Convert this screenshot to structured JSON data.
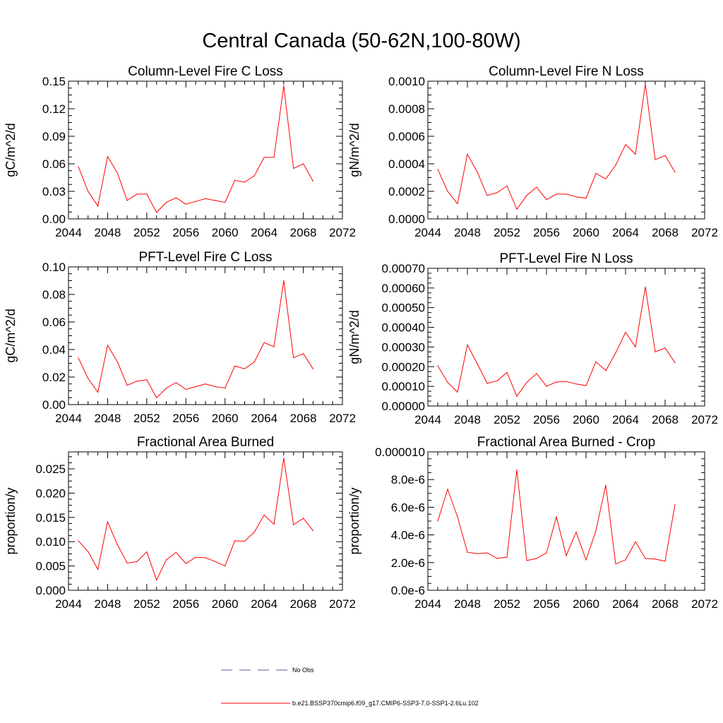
{
  "figure_title": "Central Canada (50-62N,100-80W)",
  "legend": {
    "items": [
      {
        "label": "No Obs",
        "color": "#5a5aa8",
        "style": "dashed"
      },
      {
        "label": "b.e21.BSSP370cmip6.f09_g17.CMIP6-SSP3-7.0-SSP1-2.6Lu.102",
        "color": "#ff0000",
        "style": "solid"
      }
    ]
  },
  "chart_data": [
    {
      "type": "line",
      "title": "Column-Level Fire C Loss",
      "xlabel": "",
      "ylabel": "gC/m^2/d",
      "xlim": [
        2044,
        2072
      ],
      "ylim": [
        0,
        0.15
      ],
      "x_ticks": [
        "2044",
        "2048",
        "2052",
        "2056",
        "2060",
        "2064",
        "2068",
        "2072"
      ],
      "y_ticks": [
        "0.00",
        "0.03",
        "0.06",
        "0.09",
        "0.12",
        "0.15"
      ],
      "series": [
        {
          "color": "#ff0000",
          "x": [
            2045,
            2046,
            2047,
            2048,
            2049,
            2050,
            2051,
            2052,
            2053,
            2054,
            2055,
            2056,
            2057,
            2058,
            2059,
            2060,
            2061,
            2062,
            2063,
            2064,
            2065,
            2066,
            2067,
            2068,
            2069
          ],
          "y": [
            0.057,
            0.03,
            0.014,
            0.068,
            0.05,
            0.02,
            0.027,
            0.027,
            0.007,
            0.018,
            0.023,
            0.016,
            0.019,
            0.022,
            0.02,
            0.018,
            0.042,
            0.04,
            0.047,
            0.067,
            0.067,
            0.145,
            0.055,
            0.06,
            0.041
          ]
        }
      ]
    },
    {
      "type": "line",
      "title": "Column-Level Fire N Loss",
      "xlabel": "",
      "ylabel": "gN/m^2/d",
      "xlim": [
        2044,
        2072
      ],
      "ylim": [
        0,
        0.001
      ],
      "x_ticks": [
        "2044",
        "2048",
        "2052",
        "2056",
        "2060",
        "2064",
        "2068",
        "2072"
      ],
      "y_ticks": [
        "0.0000",
        "0.0002",
        "0.0004",
        "0.0006",
        "0.0008",
        "0.0010"
      ],
      "series": [
        {
          "color": "#ff0000",
          "x": [
            2045,
            2046,
            2047,
            2048,
            2049,
            2050,
            2051,
            2052,
            2053,
            2054,
            2055,
            2056,
            2057,
            2058,
            2059,
            2060,
            2061,
            2062,
            2063,
            2064,
            2065,
            2066,
            2067,
            2068,
            2069
          ],
          "y": [
            0.00036,
            0.0002,
            0.00011,
            0.00047,
            0.00034,
            0.00017,
            0.00019,
            0.00024,
            7e-05,
            0.00017,
            0.00023,
            0.00014,
            0.00018,
            0.00018,
            0.00016,
            0.00015,
            0.00033,
            0.00029,
            0.00039,
            0.00054,
            0.00047,
            0.00098,
            0.00043,
            0.00046,
            0.00034
          ]
        }
      ]
    },
    {
      "type": "line",
      "title": "PFT-Level Fire C Loss",
      "xlabel": "",
      "ylabel": "gC/m^2/d",
      "xlim": [
        2044,
        2072
      ],
      "ylim": [
        0,
        0.1
      ],
      "x_ticks": [
        "2044",
        "2048",
        "2052",
        "2056",
        "2060",
        "2064",
        "2068",
        "2072"
      ],
      "y_ticks": [
        "0.00",
        "0.02",
        "0.04",
        "0.06",
        "0.08",
        "0.10"
      ],
      "series": [
        {
          "color": "#ff0000",
          "x": [
            2045,
            2046,
            2047,
            2048,
            2049,
            2050,
            2051,
            2052,
            2053,
            2054,
            2055,
            2056,
            2057,
            2058,
            2059,
            2060,
            2061,
            2062,
            2063,
            2064,
            2065,
            2066,
            2067,
            2068,
            2069
          ],
          "y": [
            0.034,
            0.019,
            0.009,
            0.043,
            0.031,
            0.014,
            0.017,
            0.018,
            0.005,
            0.012,
            0.016,
            0.011,
            0.013,
            0.015,
            0.013,
            0.012,
            0.028,
            0.026,
            0.031,
            0.045,
            0.042,
            0.09,
            0.034,
            0.037,
            0.026
          ]
        }
      ]
    },
    {
      "type": "line",
      "title": "PFT-Level Fire N Loss",
      "xlabel": "",
      "ylabel": "gN/m^2/d",
      "xlim": [
        2044,
        2072
      ],
      "ylim": [
        0,
        0.0007
      ],
      "x_ticks": [
        "2044",
        "2048",
        "2052",
        "2056",
        "2060",
        "2064",
        "2068",
        "2072"
      ],
      "y_ticks": [
        "0.00000",
        "0.00010",
        "0.00020",
        "0.00030",
        "0.00040",
        "0.00050",
        "0.00060",
        "0.00070"
      ],
      "series": [
        {
          "color": "#ff0000",
          "x": [
            2045,
            2046,
            2047,
            2048,
            2049,
            2050,
            2051,
            2052,
            2053,
            2054,
            2055,
            2056,
            2057,
            2058,
            2059,
            2060,
            2061,
            2062,
            2063,
            2064,
            2065,
            2066,
            2067,
            2068,
            2069
          ],
          "y": [
            0.000205,
            0.00012,
            7e-05,
            0.00031,
            0.000215,
            0.000115,
            0.000128,
            0.00017,
            5e-05,
            0.00012,
            0.000165,
            0.0001,
            0.000122,
            0.000125,
            0.000112,
            0.000103,
            0.000225,
            0.00018,
            0.00027,
            0.000375,
            0.0003,
            0.000605,
            0.000275,
            0.000295,
            0.00022
          ]
        }
      ]
    },
    {
      "type": "line",
      "title": "Fractional Area Burned",
      "xlabel": "",
      "ylabel": "proportion/y",
      "xlim": [
        2044,
        2072
      ],
      "ylim": [
        0,
        0.0285
      ],
      "x_ticks": [
        "2044",
        "2048",
        "2052",
        "2056",
        "2060",
        "2064",
        "2068",
        "2072"
      ],
      "y_ticks": [
        "0.000",
        "0.005",
        "0.010",
        "0.015",
        "0.020",
        "0.025"
      ],
      "series": [
        {
          "color": "#ff0000",
          "x": [
            2045,
            2046,
            2047,
            2048,
            2049,
            2050,
            2051,
            2052,
            2053,
            2054,
            2055,
            2056,
            2057,
            2058,
            2059,
            2060,
            2061,
            2062,
            2063,
            2064,
            2065,
            2066,
            2067,
            2068,
            2069
          ],
          "y": [
            0.0102,
            0.008,
            0.0043,
            0.0141,
            0.0094,
            0.0056,
            0.0059,
            0.0079,
            0.0021,
            0.0063,
            0.0078,
            0.0055,
            0.0068,
            0.0067,
            0.0059,
            0.005,
            0.0102,
            0.0101,
            0.012,
            0.0155,
            0.0136,
            0.0272,
            0.0135,
            0.0148,
            0.0123
          ]
        }
      ]
    },
    {
      "type": "line",
      "title": "Fractional Area Burned - Crop",
      "xlabel": "",
      "ylabel": "proportion/y",
      "xlim": [
        2044,
        2072
      ],
      "ylim": [
        0,
        1e-05
      ],
      "x_ticks": [
        "2044",
        "2048",
        "2052",
        "2056",
        "2060",
        "2064",
        "2068",
        "2072"
      ],
      "y_ticks": [
        "0.0e-6",
        "2.0e-6",
        "4.0e-6",
        "6.0e-6",
        "8.0e-6",
        "0.000010"
      ],
      "series": [
        {
          "color": "#ff0000",
          "x": [
            2045,
            2046,
            2047,
            2048,
            2049,
            2050,
            2051,
            2052,
            2053,
            2054,
            2055,
            2056,
            2057,
            2058,
            2059,
            2060,
            2061,
            2062,
            2063,
            2064,
            2065,
            2066,
            2067,
            2068,
            2069
          ],
          "y": [
            5e-06,
            7.3e-06,
            5.3e-06,
            2.75e-06,
            2.65e-06,
            2.7e-06,
            2.3e-06,
            2.4e-06,
            8.7e-06,
            2.15e-06,
            2.3e-06,
            2.7e-06,
            5.3e-06,
            2.5e-06,
            4.2e-06,
            2.2e-06,
            4.3e-06,
            7.6e-06,
            1.9e-06,
            2.2e-06,
            3.5e-06,
            2.3e-06,
            2.25e-06,
            2.1e-06,
            6.2e-06
          ]
        }
      ]
    }
  ]
}
